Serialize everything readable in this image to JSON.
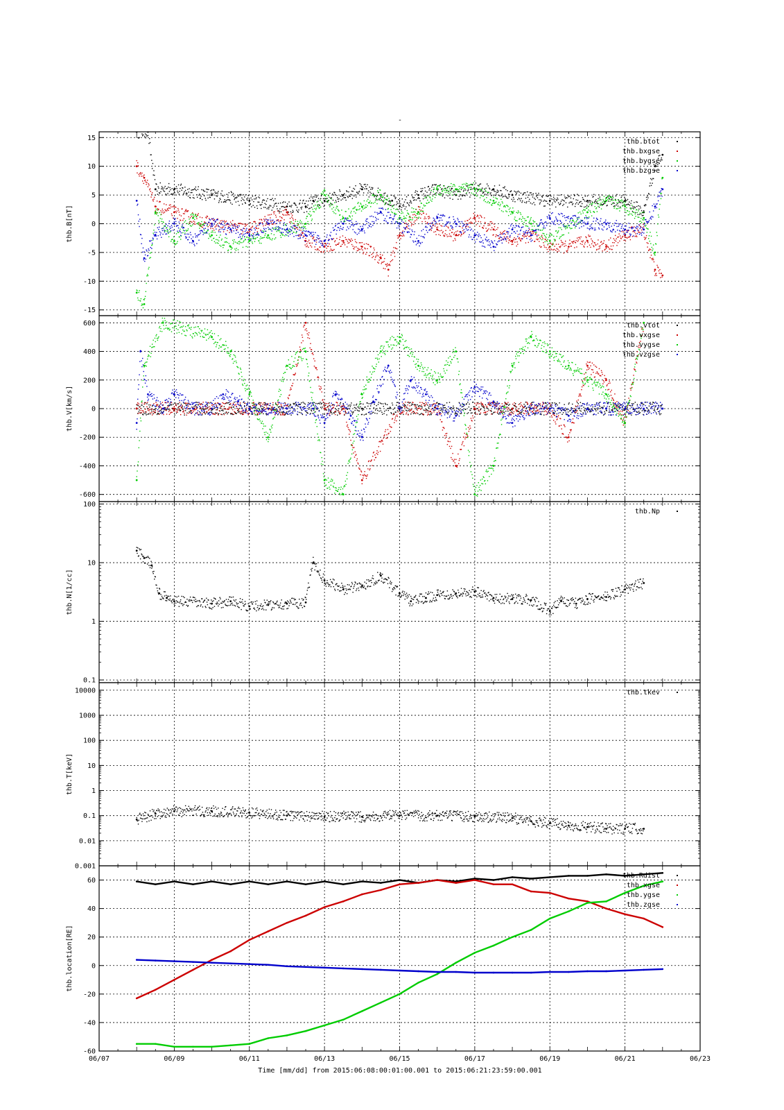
{
  "figure": {
    "title": "-",
    "xlabel": "Time [mm/dd]  from 2015:06:08:00:01:00.001  to  2015:06:21:23:59:00.001",
    "x_ticks": [
      "06/07",
      "06/09",
      "06/11",
      "06/13",
      "06/15",
      "06/17",
      "06/19",
      "06/21",
      "06/23"
    ]
  },
  "chart_data": [
    {
      "type": "scatter",
      "ylabel": "thb.B[nT]",
      "ylim": [
        -16,
        16
      ],
      "scale": "linear",
      "yticks": [
        {
          "v": 15,
          "t": "15"
        },
        {
          "v": 10,
          "t": "10"
        },
        {
          "v": 5,
          "t": "5"
        },
        {
          "v": 0,
          "t": "0"
        },
        {
          "v": -5,
          "t": "-5"
        },
        {
          "v": -10,
          "t": "-10"
        },
        {
          "v": -15,
          "t": "-15"
        }
      ],
      "legend": [
        "thb.btot",
        "thb.bxgse",
        "thb.bygse",
        "thb.bzgse"
      ],
      "series": [
        {
          "name": "thb.btot",
          "color": "#000000",
          "x": [
            8.0,
            8.3,
            8.5,
            9.0,
            10.0,
            11.0,
            12.0,
            12.5,
            12.7,
            13.0,
            13.5,
            14.0,
            14.5,
            14.8,
            15.0,
            15.5,
            16.0,
            16.5,
            17.0,
            17.5,
            18.0,
            19.0,
            20.0,
            21.0,
            21.5,
            21.8,
            22.0
          ],
          "y": [
            16,
            16,
            6,
            6,
            5,
            4,
            3,
            3,
            4,
            4,
            5,
            6,
            5,
            4,
            3,
            5,
            6,
            5,
            6,
            6,
            5,
            4,
            4,
            4,
            2,
            10,
            12
          ]
        },
        {
          "name": "thb.bxgse",
          "color": "#cc0000",
          "x": [
            8.0,
            8.2,
            8.5,
            9.0,
            10.0,
            11.0,
            12.0,
            12.5,
            13.0,
            13.5,
            14.0,
            14.5,
            14.7,
            15.0,
            15.5,
            16.0,
            16.5,
            17.0,
            17.5,
            18.0,
            18.5,
            19.0,
            19.5,
            20.0,
            20.5,
            21.0,
            21.5,
            21.8,
            22.0
          ],
          "y": [
            10,
            8,
            3,
            2,
            0,
            -1,
            2,
            -3,
            -4,
            -3,
            -4,
            -6,
            -8,
            -2,
            2,
            -1,
            -2,
            1,
            -1,
            -3,
            -2,
            -4,
            -4,
            -3,
            -4,
            -2,
            -1,
            -8,
            -9
          ]
        },
        {
          "name": "thb.bygse",
          "color": "#00cc00",
          "x": [
            8.0,
            8.2,
            8.5,
            9.0,
            9.5,
            10.0,
            10.5,
            11.0,
            11.5,
            12.0,
            12.5,
            13.0,
            13.5,
            14.0,
            14.5,
            15.0,
            15.5,
            16.0,
            16.5,
            17.0,
            17.5,
            18.0,
            18.5,
            19.0,
            20.0,
            20.5,
            21.0,
            21.5,
            21.8,
            22.0
          ],
          "y": [
            -12,
            -14,
            2,
            -3,
            1,
            -2,
            -4,
            -3,
            -2,
            -1,
            0,
            5,
            1,
            3,
            5,
            1,
            2,
            6,
            6,
            6,
            4,
            2,
            0,
            -3,
            2,
            4,
            3,
            1,
            -5,
            8
          ]
        },
        {
          "name": "thb.bzgse",
          "color": "#0000cc",
          "x": [
            8.0,
            8.2,
            8.5,
            9.0,
            9.5,
            10.0,
            10.5,
            11.0,
            11.5,
            12.0,
            12.5,
            13.0,
            13.5,
            14.0,
            14.5,
            15.0,
            15.5,
            16.0,
            16.5,
            17.0,
            17.5,
            18.0,
            18.5,
            19.0,
            20.0,
            20.5,
            21.0,
            21.5,
            21.8,
            22.0
          ],
          "y": [
            4,
            -6,
            -2,
            0,
            -3,
            0,
            -1,
            -2,
            0,
            -1,
            -2,
            -3,
            0,
            -1,
            2,
            0,
            -3,
            1,
            0,
            -2,
            -4,
            -1,
            -2,
            1,
            0,
            0,
            -1,
            -1,
            3,
            6
          ]
        }
      ]
    },
    {
      "type": "scatter",
      "ylabel": "thb.V[km/s]",
      "ylim": [
        -650,
        650
      ],
      "scale": "linear",
      "yticks": [
        {
          "v": 600,
          "t": "600"
        },
        {
          "v": 400,
          "t": "400"
        },
        {
          "v": 200,
          "t": "200"
        },
        {
          "v": 0,
          "t": "0"
        },
        {
          "v": -200,
          "t": "-200"
        },
        {
          "v": -400,
          "t": "-400"
        },
        {
          "v": -600,
          "t": "-600"
        }
      ],
      "legend": [
        "thb.vtot",
        "thb.vxgse",
        "thb.vygse",
        "thb.vzgse"
      ],
      "series": [
        {
          "name": "thb.vtot",
          "color": "#000000",
          "x": [
            8.0,
            9.0,
            10.0,
            11.0,
            12.0,
            13.0,
            14.0,
            15.0,
            16.0,
            17.0,
            18.0,
            19.0,
            20.0,
            21.0,
            22.0
          ],
          "y": [
            0,
            0,
            0,
            0,
            0,
            0,
            0,
            0,
            0,
            0,
            0,
            0,
            0,
            0,
            0
          ]
        },
        {
          "name": "thb.vxgse",
          "color": "#cc0000",
          "x": [
            8.0,
            9.0,
            10.0,
            11.0,
            12.0,
            12.5,
            13.0,
            13.5,
            14.0,
            15.0,
            16.0,
            16.5,
            17.0,
            18.0,
            19.0,
            19.5,
            20.0,
            20.5,
            21.0,
            21.5
          ],
          "y": [
            0,
            0,
            0,
            0,
            0,
            600,
            0,
            0,
            -500,
            0,
            0,
            -400,
            0,
            0,
            0,
            -200,
            300,
            200,
            -100,
            600
          ]
        },
        {
          "name": "thb.vygse",
          "color": "#00cc00",
          "x": [
            8.0,
            8.2,
            8.7,
            10.0,
            10.5,
            11.0,
            11.5,
            12.0,
            12.5,
            13.0,
            13.5,
            14.0,
            14.5,
            15.0,
            15.5,
            16.0,
            16.5,
            17.0,
            17.5,
            18.0,
            18.5,
            19.0,
            19.5,
            20.0,
            20.5,
            21.0,
            21.5
          ],
          "y": [
            -500,
            300,
            600,
            500,
            400,
            100,
            -200,
            300,
            400,
            -500,
            -600,
            100,
            400,
            500,
            300,
            200,
            400,
            -600,
            -400,
            300,
            500,
            400,
            300,
            200,
            100,
            -100,
            600
          ]
        },
        {
          "name": "thb.vzgse",
          "color": "#0000cc",
          "x": [
            8.0,
            8.1,
            8.3,
            8.7,
            9.0,
            9.5,
            10.0,
            10.3,
            10.7,
            11.0,
            11.5,
            12.0,
            12.7,
            13.0,
            13.3,
            13.7,
            14.0,
            14.3,
            14.7,
            15.0,
            15.3,
            15.7,
            16.0,
            16.5,
            17.0,
            17.5,
            18.0,
            18.5,
            19.0,
            19.5,
            20.0,
            20.5,
            21.0,
            21.5,
            22.0
          ],
          "y": [
            -100,
            400,
            100,
            0,
            100,
            0,
            0,
            100,
            50,
            0,
            0,
            0,
            0,
            -100,
            100,
            -50,
            -200,
            50,
            300,
            0,
            200,
            100,
            0,
            -50,
            150,
            50,
            -100,
            0,
            0,
            -50,
            0,
            0,
            0,
            0,
            0
          ]
        }
      ]
    },
    {
      "type": "scatter",
      "ylabel": "thb.N[1/cc]",
      "ylim": [
        0.09,
        110
      ],
      "scale": "log",
      "yticks": [
        {
          "v": 100,
          "t": "100"
        },
        {
          "v": 10,
          "t": "10"
        },
        {
          "v": 1,
          "t": "1"
        },
        {
          "v": 0.1,
          "t": "0.1"
        }
      ],
      "legend": [
        "thb.Np"
      ],
      "series": [
        {
          "name": "thb.Np",
          "color": "#000000",
          "x": [
            8.0,
            8.2,
            8.4,
            8.6,
            8.8,
            9.0,
            10.0,
            10.5,
            11.0,
            11.5,
            12.0,
            12.5,
            12.7,
            13.0,
            13.5,
            14.0,
            14.5,
            15.0,
            15.3,
            15.7,
            16.0,
            16.5,
            17.0,
            17.5,
            18.0,
            18.5,
            19.0,
            19.3,
            19.7,
            20.0,
            20.5,
            21.0,
            21.5
          ],
          "y": [
            16,
            12,
            9,
            3,
            2.5,
            2.2,
            2,
            2.2,
            1.8,
            1.9,
            2.0,
            2.1,
            10,
            5,
            3.5,
            4,
            6,
            3,
            2.2,
            2.5,
            2.8,
            3,
            3.2,
            2.5,
            2.4,
            2.3,
            1.5,
            2.2,
            2.0,
            2.4,
            2.6,
            3.5,
            4.5
          ]
        }
      ]
    },
    {
      "type": "scatter",
      "ylabel": "thb.T[keV]",
      "ylim": [
        0.001,
        20000
      ],
      "scale": "log",
      "yticks": [
        {
          "v": 10000,
          "t": "10000"
        },
        {
          "v": 1000,
          "t": "1000"
        },
        {
          "v": 100,
          "t": "100"
        },
        {
          "v": 10,
          "t": "10"
        },
        {
          "v": 1,
          "t": "1"
        },
        {
          "v": 0.1,
          "t": "0.1"
        },
        {
          "v": 0.01,
          "t": "0.01"
        },
        {
          "v": 0.001,
          "t": "0.001"
        }
      ],
      "legend": [
        "thb.tkev"
      ],
      "series": [
        {
          "name": "thb.tkev",
          "color": "#000000",
          "x": [
            8.0,
            8.5,
            9.0,
            10.0,
            11.0,
            12.0,
            13.0,
            14.0,
            15.0,
            16.0,
            17.0,
            18.0,
            18.5,
            19.0,
            19.5,
            20.0,
            20.5,
            21.0,
            21.5
          ],
          "y": [
            0.07,
            0.12,
            0.15,
            0.15,
            0.13,
            0.1,
            0.09,
            0.09,
            0.1,
            0.1,
            0.09,
            0.08,
            0.06,
            0.05,
            0.04,
            0.035,
            0.03,
            0.03,
            0.03
          ]
        }
      ]
    },
    {
      "type": "line",
      "ylabel": "thb.location[RE]",
      "ylim": [
        -60,
        70
      ],
      "scale": "linear",
      "yticks": [
        {
          "v": 60,
          "t": "60"
        },
        {
          "v": 40,
          "t": "40"
        },
        {
          "v": 20,
          "t": "20"
        },
        {
          "v": 0,
          "t": "0"
        },
        {
          "v": -20,
          "t": "-20"
        },
        {
          "v": -40,
          "t": "-40"
        },
        {
          "v": -60,
          "t": "-60"
        }
      ],
      "legend": [
        "thb.Rdist",
        "thb.xgse",
        "thb.ygse",
        "thb.zgse"
      ],
      "series": [
        {
          "name": "thb.Rdist",
          "color": "#000000",
          "x": [
            8.0,
            8.5,
            9.0,
            9.5,
            10.0,
            10.5,
            11.0,
            11.5,
            12.0,
            12.5,
            13.0,
            13.5,
            14.0,
            14.5,
            15.0,
            15.5,
            16.0,
            16.5,
            17.0,
            17.5,
            18.0,
            18.5,
            19.0,
            19.5,
            20.0,
            20.5,
            21.0,
            21.5,
            22.0
          ],
          "y": [
            59,
            57,
            59,
            57,
            59,
            57,
            59,
            57,
            59,
            57,
            59,
            57,
            59,
            58,
            60,
            58,
            60,
            59,
            61,
            60,
            62,
            61,
            62,
            63,
            63,
            64,
            63,
            64,
            65
          ]
        },
        {
          "name": "thb.xgse",
          "color": "#cc0000",
          "x": [
            8.0,
            8.5,
            9.0,
            9.5,
            10.0,
            10.5,
            11.0,
            11.5,
            12.0,
            12.5,
            13.0,
            13.5,
            14.0,
            14.5,
            15.0,
            15.5,
            16.0,
            16.5,
            17.0,
            17.5,
            18.0,
            18.5,
            19.0,
            19.5,
            20.0,
            20.5,
            21.0,
            21.5,
            22.0
          ],
          "y": [
            -23,
            -17,
            -10,
            -3,
            4,
            10,
            18,
            24,
            30,
            35,
            41,
            45,
            50,
            53,
            57,
            58,
            60,
            58,
            60,
            57,
            57,
            52,
            51,
            47,
            45,
            40,
            36,
            33,
            27
          ]
        },
        {
          "name": "thb.ygse",
          "color": "#00cc00",
          "x": [
            8.0,
            8.5,
            9.0,
            9.5,
            10.0,
            10.5,
            11.0,
            11.5,
            12.0,
            12.5,
            13.0,
            13.5,
            14.0,
            14.5,
            15.0,
            15.5,
            16.0,
            16.5,
            17.0,
            17.5,
            18.0,
            18.5,
            19.0,
            19.5,
            20.0,
            20.5,
            21.0,
            21.5,
            22.0
          ],
          "y": [
            -55,
            -55,
            -57,
            -57,
            -57,
            -56,
            -55,
            -51,
            -49,
            -46,
            -42,
            -38,
            -32,
            -26,
            -20,
            -12,
            -6,
            2,
            9,
            14,
            20,
            25,
            33,
            38,
            44,
            45,
            51,
            56,
            59
          ]
        },
        {
          "name": "thb.zgse",
          "color": "#0000cc",
          "x": [
            8.0,
            8.5,
            9.0,
            9.5,
            10.0,
            10.5,
            11.0,
            11.5,
            12.0,
            12.5,
            13.0,
            13.5,
            14.0,
            14.5,
            15.0,
            15.5,
            16.0,
            16.5,
            17.0,
            17.5,
            18.0,
            18.5,
            19.0,
            19.5,
            20.0,
            20.5,
            21.0,
            21.5,
            22.0
          ],
          "y": [
            4,
            3.5,
            3,
            2.5,
            2,
            1.5,
            1,
            0.5,
            -0.5,
            -1,
            -1.5,
            -2,
            -2.5,
            -3,
            -3.5,
            -4,
            -4.5,
            -4.5,
            -5,
            -5,
            -5,
            -5,
            -4.5,
            -4.5,
            -4,
            -4,
            -3.5,
            -3,
            -2.5
          ]
        }
      ]
    }
  ]
}
